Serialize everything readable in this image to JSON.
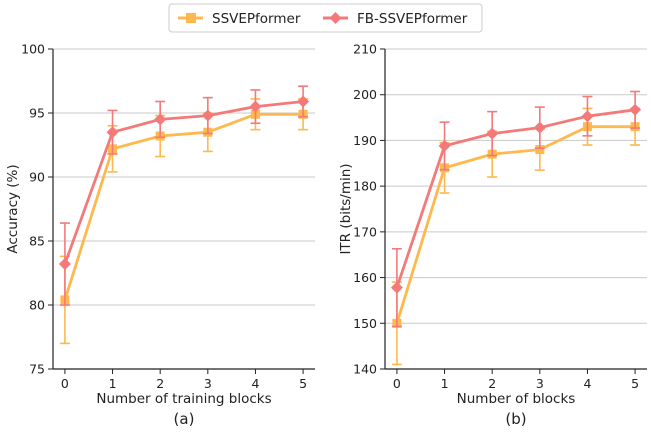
{
  "colors": {
    "series1": "#ffb84d",
    "series2": "#f47a7a",
    "grid": "#c9c9c9",
    "axis": "#222222"
  },
  "legend": {
    "entries": [
      "SSVEPformer",
      "FB-SSVEPformer"
    ],
    "placement": "top-center"
  },
  "chart_data": [
    {
      "type": "line",
      "panel_label": "(a)",
      "xlabel": "Number of training blocks",
      "ylabel": "Accuracy (%)",
      "x": [
        0,
        1,
        2,
        3,
        4,
        5
      ],
      "xticks": [
        "0",
        "1",
        "2",
        "3",
        "4",
        "5"
      ],
      "xlim": [
        -0.25,
        5.25
      ],
      "ylim": [
        75,
        100
      ],
      "yticks": [
        75,
        80,
        85,
        90,
        95,
        100
      ],
      "grid": "horizontal",
      "series": [
        {
          "name": "SSVEPformer",
          "marker": "square",
          "values": [
            80.4,
            92.2,
            93.2,
            93.5,
            94.9,
            94.9
          ],
          "errors": [
            3.4,
            1.8,
            1.6,
            1.5,
            1.2,
            1.2
          ]
        },
        {
          "name": "FB-SSVEPformer",
          "marker": "diamond",
          "values": [
            83.2,
            93.5,
            94.5,
            94.8,
            95.5,
            95.9
          ],
          "errors": [
            3.2,
            1.7,
            1.4,
            1.4,
            1.3,
            1.2
          ]
        }
      ]
    },
    {
      "type": "line",
      "panel_label": "(b)",
      "xlabel": "Number of blocks",
      "ylabel": "ITR (bits/min)",
      "x": [
        0,
        1,
        2,
        3,
        4,
        5
      ],
      "xticks": [
        "0",
        "1",
        "2",
        "3",
        "4",
        "5"
      ],
      "xlim": [
        -0.25,
        5.25
      ],
      "ylim": [
        140,
        210
      ],
      "yticks": [
        140,
        150,
        160,
        170,
        180,
        190,
        200,
        210
      ],
      "grid": "horizontal",
      "series": [
        {
          "name": "SSVEPformer",
          "marker": "square",
          "values": [
            150,
            184,
            187,
            188,
            193,
            193
          ],
          "errors": [
            9,
            5.5,
            5,
            4.5,
            4,
            4
          ]
        },
        {
          "name": "FB-SSVEPformer",
          "marker": "diamond",
          "values": [
            157.8,
            188.8,
            191.5,
            192.8,
            195.3,
            196.7
          ],
          "errors": [
            8.5,
            5.2,
            4.8,
            4.5,
            4.3,
            4
          ]
        }
      ]
    }
  ]
}
